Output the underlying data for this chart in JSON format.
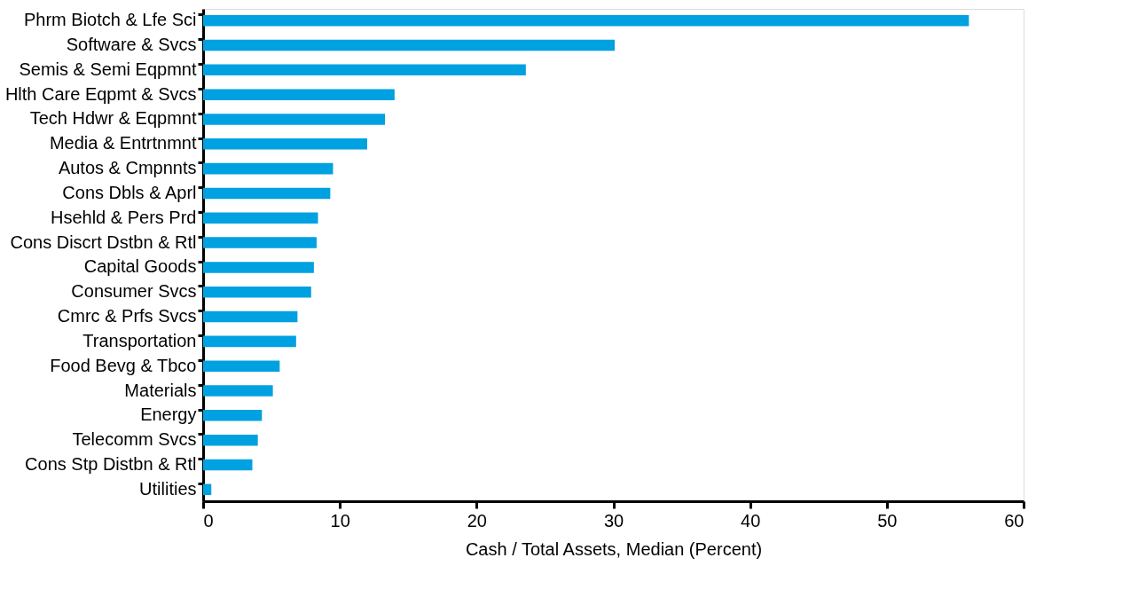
{
  "chart_data": {
    "type": "bar",
    "orientation": "horizontal",
    "xlabel": "Cash / Total Assets, Median (Percent)",
    "categories": [
      "Phrm Biotch & Lfe Sci",
      "Software & Svcs",
      "Semis & Semi Eqpmnt",
      "Hlth Care Eqpmt & Svcs",
      "Tech Hdwr & Eqpmnt",
      "Media & Entrtnmnt",
      "Autos & Cmpnnts",
      "Cons Dbls & Aprl",
      "Hsehld & Pers Prd",
      "Cons Discrt Dstbn & Rtl",
      "Capital Goods",
      "Consumer Svcs",
      "Cmrc & Prfs Svcs",
      "Transportation",
      "Food Bevg & Tbco",
      "Materials",
      "Energy",
      "Telecomm Svcs",
      "Cons Stp Distbn & Rtl",
      "Utilities"
    ],
    "values": [
      56,
      30.1,
      23.6,
      14,
      13.3,
      12,
      9.5,
      9.3,
      8.4,
      8.3,
      8.1,
      7.9,
      6.9,
      6.8,
      5.6,
      5.1,
      4.3,
      4,
      3.6,
      0.6
    ],
    "color": "#00a1e0",
    "xlim": [
      0,
      60
    ],
    "xticks": [
      0,
      10,
      20,
      30,
      40,
      50,
      60
    ],
    "grid": false
  }
}
